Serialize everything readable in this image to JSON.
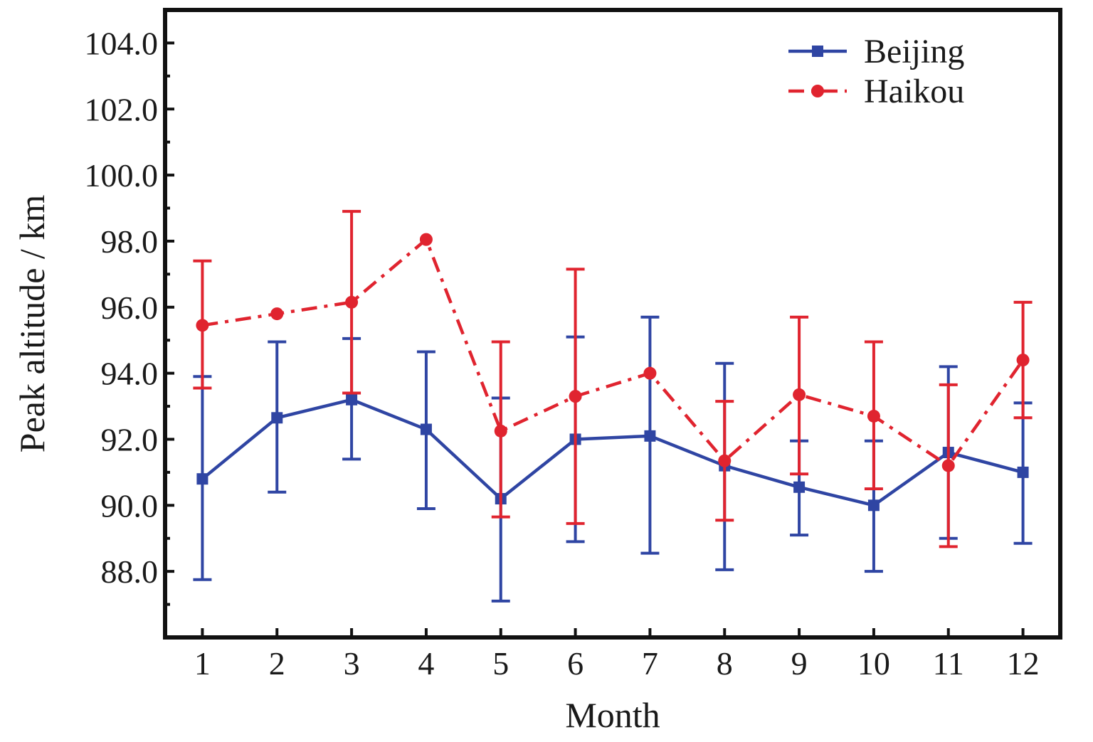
{
  "chart_data": {
    "type": "line",
    "xlabel": "Month",
    "ylabel": "Peak altitude / km",
    "categories": [
      "1",
      "2",
      "3",
      "4",
      "5",
      "6",
      "7",
      "8",
      "9",
      "10",
      "11",
      "12"
    ],
    "x": [
      1,
      2,
      3,
      4,
      5,
      6,
      7,
      8,
      9,
      10,
      11,
      12
    ],
    "xlim": [
      0.5,
      12.5
    ],
    "ylim": [
      86.0,
      105.0
    ],
    "yticks": [
      88.0,
      90.0,
      92.0,
      94.0,
      96.0,
      98.0,
      100.0,
      102.0,
      104.0
    ],
    "ytick_labels": [
      "88.0",
      "90.0",
      "92.0",
      "94.0",
      "96.0",
      "98.0",
      "100.0",
      "102.0",
      "104.0"
    ],
    "grid": false,
    "legend_position": "top-right",
    "series": [
      {
        "name": "Beijing",
        "color": "#2f45a3",
        "marker": "square",
        "line_style": "solid",
        "values": [
          90.8,
          92.65,
          93.2,
          92.3,
          90.2,
          92.0,
          92.1,
          91.2,
          90.55,
          90.0,
          91.6,
          91.0
        ],
        "error_low": [
          87.75,
          90.4,
          91.4,
          89.9,
          87.1,
          88.9,
          88.55,
          88.05,
          89.1,
          88.0,
          89.0,
          88.85
        ],
        "error_high": [
          93.9,
          94.95,
          95.05,
          94.65,
          93.25,
          95.1,
          95.7,
          94.3,
          91.95,
          91.95,
          94.2,
          93.1
        ]
      },
      {
        "name": "Haikou",
        "color": "#e0242f",
        "marker": "circle",
        "line_style": "dash-dot",
        "values": [
          95.45,
          95.8,
          96.15,
          98.05,
          92.25,
          93.3,
          94.0,
          91.35,
          93.35,
          92.7,
          91.2,
          94.4
        ],
        "error_low": [
          93.55,
          null,
          93.4,
          null,
          89.65,
          89.45,
          null,
          89.55,
          90.95,
          90.5,
          88.75,
          92.65
        ],
        "error_high": [
          97.4,
          null,
          98.9,
          null,
          94.95,
          97.15,
          null,
          93.15,
          95.7,
          94.95,
          93.65,
          96.15
        ]
      }
    ]
  }
}
